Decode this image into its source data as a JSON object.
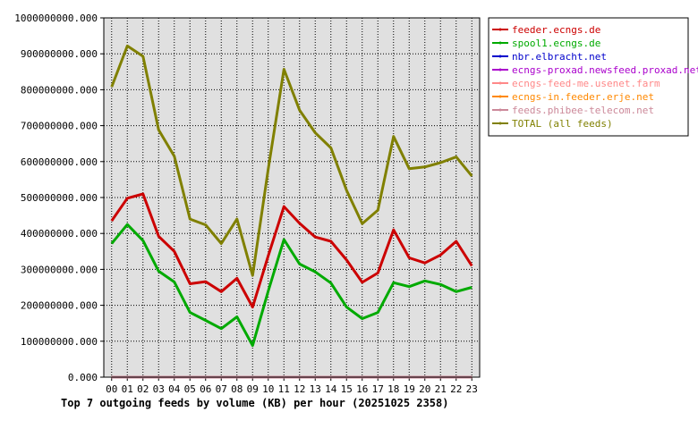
{
  "chart_data": {
    "type": "line",
    "title": "Top 7 outgoing feeds by volume (KB) per hour (20251025 2358)",
    "x": [
      "00",
      "01",
      "02",
      "03",
      "04",
      "05",
      "06",
      "07",
      "08",
      "09",
      "10",
      "11",
      "12",
      "13",
      "14",
      "15",
      "16",
      "17",
      "18",
      "19",
      "20",
      "21",
      "22",
      "23"
    ],
    "ylim": [
      0,
      1000000000
    ],
    "yticks": [
      {
        "value": 0,
        "label": "0.000"
      },
      {
        "value": 100000000,
        "label": "100000000.000"
      },
      {
        "value": 200000000,
        "label": "200000000.000"
      },
      {
        "value": 300000000,
        "label": "300000000.000"
      },
      {
        "value": 400000000,
        "label": "400000000.000"
      },
      {
        "value": 500000000,
        "label": "500000000.000"
      },
      {
        "value": 600000000,
        "label": "600000000.000"
      },
      {
        "value": 700000000,
        "label": "700000000.000"
      },
      {
        "value": 800000000,
        "label": "800000000.000"
      },
      {
        "value": 900000000,
        "label": "900000000.000"
      },
      {
        "value": 1000000000,
        "label": "1000000000.000"
      }
    ],
    "grid": true,
    "legend_position": "right",
    "series": [
      {
        "name": "feeder.ecngs.de",
        "color": "#cc0000",
        "values": [
          435000000,
          498000000,
          510000000,
          392000000,
          350000000,
          260000000,
          266000000,
          238000000,
          275000000,
          195000000,
          338000000,
          475000000,
          428000000,
          390000000,
          378000000,
          326000000,
          264000000,
          290000000,
          410000000,
          332000000,
          318000000,
          340000000,
          378000000,
          310000000
        ]
      },
      {
        "name": "spool1.ecngs.de",
        "color": "#00aa00",
        "values": [
          372000000,
          425000000,
          380000000,
          295000000,
          265000000,
          180000000,
          158000000,
          135000000,
          168000000,
          88000000,
          240000000,
          383000000,
          315000000,
          293000000,
          262000000,
          195000000,
          163000000,
          180000000,
          263000000,
          252000000,
          268000000,
          258000000,
          238000000,
          250000000
        ]
      },
      {
        "name": "nbr.elbracht.net",
        "color": "#0000cc",
        "values": [
          0,
          0,
          0,
          0,
          0,
          0,
          0,
          0,
          0,
          0,
          0,
          0,
          0,
          0,
          0,
          0,
          0,
          0,
          0,
          0,
          0,
          0,
          0,
          0
        ]
      },
      {
        "name": "ecngs-proxad.newsfeed.proxad.net",
        "color": "#aa00cc",
        "values": [
          0,
          0,
          0,
          0,
          0,
          0,
          0,
          0,
          0,
          0,
          0,
          0,
          0,
          0,
          0,
          0,
          0,
          0,
          0,
          0,
          0,
          0,
          0,
          0
        ]
      },
      {
        "name": "ecngs-feed-me.usenet.farm",
        "color": "#ff8888",
        "values": [
          0,
          0,
          0,
          0,
          0,
          0,
          0,
          0,
          0,
          0,
          0,
          0,
          0,
          0,
          0,
          0,
          0,
          0,
          0,
          0,
          0,
          0,
          0,
          0
        ]
      },
      {
        "name": "ecngs-in.feeder.erje.net",
        "color": "#ff8800",
        "values": [
          0,
          0,
          0,
          0,
          0,
          0,
          0,
          0,
          0,
          0,
          0,
          0,
          0,
          0,
          0,
          0,
          0,
          0,
          0,
          0,
          0,
          0,
          0,
          0
        ]
      },
      {
        "name": "feeds.phibee-telecom.net",
        "color": "#cc8899",
        "values": [
          0,
          0,
          0,
          0,
          0,
          0,
          0,
          0,
          0,
          0,
          0,
          0,
          0,
          0,
          0,
          0,
          0,
          0,
          0,
          0,
          0,
          0,
          0,
          0
        ]
      },
      {
        "name": "TOTAL (all feeds)",
        "color": "#808000",
        "values": [
          808000000,
          922000000,
          893000000,
          688000000,
          615000000,
          440000000,
          424000000,
          372000000,
          440000000,
          283000000,
          580000000,
          857000000,
          743000000,
          680000000,
          638000000,
          520000000,
          427000000,
          465000000,
          670000000,
          580000000,
          585000000,
          597000000,
          613000000,
          560000000
        ]
      }
    ]
  },
  "colors": {
    "plot_bg": "#e0e0e0",
    "grid": "#000000",
    "frame": "#000000"
  }
}
